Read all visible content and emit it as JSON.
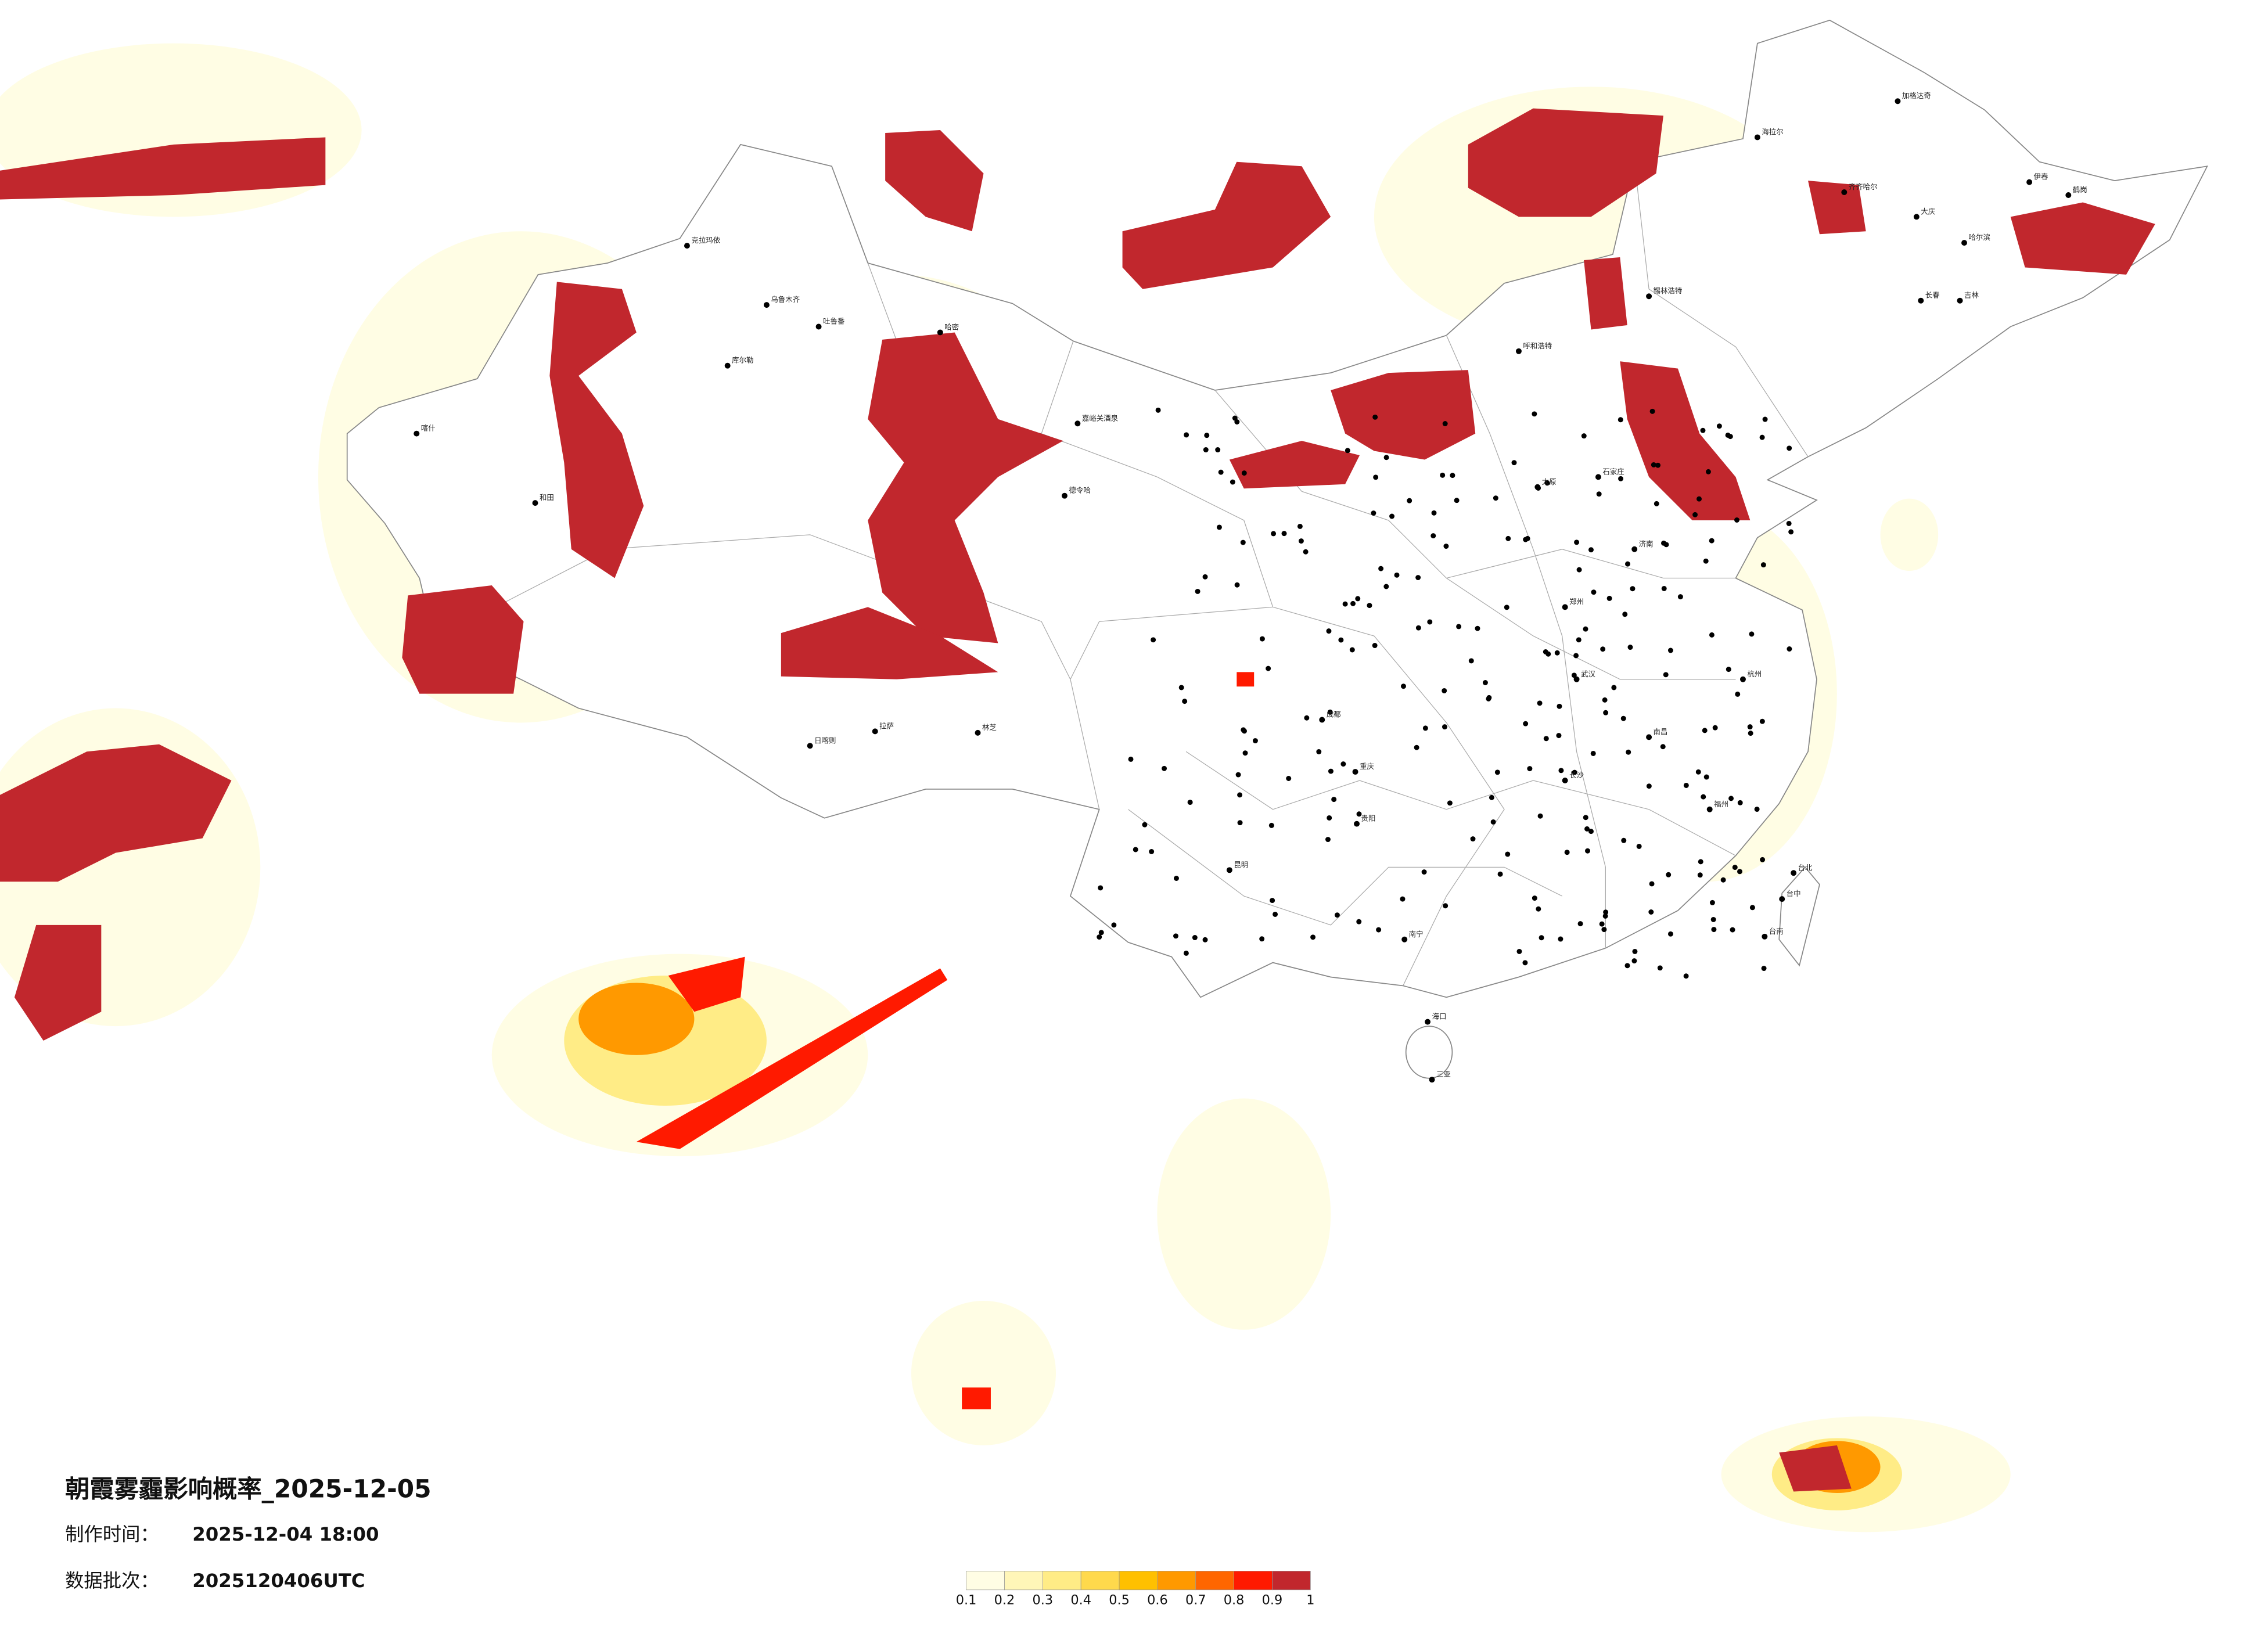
{
  "map": {
    "title": "朝霞雾霾影响概率_2025-12-05",
    "made_label": "制作时间：",
    "made_time": "2025-12-04 18:00",
    "batch_label": "数据批次：",
    "batch": "2025120406UTC",
    "legend": {
      "colors": [
        "#fffde4",
        "#fff6b8",
        "#ffec86",
        "#ffd94c",
        "#ffc000",
        "#ff9900",
        "#ff6600",
        "#ff1a00",
        "#c1272d"
      ],
      "ticks": [
        0.1,
        0.2,
        0.3,
        0.4,
        0.5,
        0.6,
        0.7,
        0.8,
        0.9,
        1
      ]
    },
    "cities": [
      "加格达奇",
      "海拉尔",
      "齐齐哈尔",
      "大庆",
      "哈尔滨",
      "伊春",
      "鹤岗",
      "长春",
      "吉林",
      "锡林浩特",
      "呼和浩特",
      "嘉峪关酒泉",
      "克拉玛依",
      "乌鲁木齐",
      "吐鲁番",
      "哈密",
      "库尔勒",
      "喀什",
      "和田",
      "拉萨",
      "日喀则",
      "林芝",
      "德令哈",
      "成都",
      "重庆",
      "昆明",
      "贵阳",
      "南宁",
      "海口",
      "三亚",
      "台北",
      "台中",
      "台南",
      "石家庄",
      "太原",
      "郑州",
      "武汉",
      "长沙",
      "南昌",
      "福州",
      "杭州",
      "济南"
    ]
  }
}
